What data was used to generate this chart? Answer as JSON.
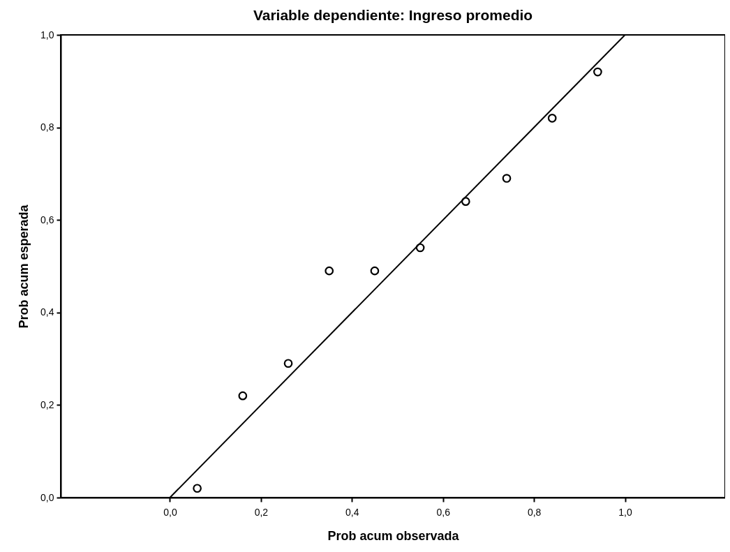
{
  "chart_data": {
    "type": "scatter",
    "title": "Variable dependiente: Ingreso promedio",
    "xlabel": "Prob acum observada",
    "ylabel": "Prob acum esperada",
    "xlim": [
      -0.24,
      1.22
    ],
    "ylim": [
      0,
      1
    ],
    "xticks": [
      {
        "value": 0,
        "label": "0,0"
      },
      {
        "value": 0.2,
        "label": "0,2"
      },
      {
        "value": 0.4,
        "label": "0,4"
      },
      {
        "value": 0.6,
        "label": "0,6"
      },
      {
        "value": 0.8,
        "label": "0,8"
      },
      {
        "value": 1,
        "label": "1,0"
      }
    ],
    "yticks": [
      {
        "value": 0,
        "label": "0,0"
      },
      {
        "value": 0.2,
        "label": "0,2"
      },
      {
        "value": 0.4,
        "label": "0,4"
      },
      {
        "value": 0.6,
        "label": "0,6"
      },
      {
        "value": 0.8,
        "label": "0,8"
      },
      {
        "value": 1,
        "label": "1,0"
      }
    ],
    "grid": false,
    "series": [
      {
        "type": "line",
        "color": "#000000",
        "line_style": "solid",
        "x": [
          0,
          1
        ],
        "values": [
          0,
          1
        ]
      },
      {
        "type": "scatter",
        "marker": "circle",
        "color": "#000000",
        "x": [
          0.06,
          0.16,
          0.26,
          0.35,
          0.45,
          0.55,
          0.65,
          0.74,
          0.84,
          0.94
        ],
        "values": [
          0.02,
          0.22,
          0.29,
          0.49,
          0.49,
          0.54,
          0.64,
          0.69,
          0.82,
          0.92
        ]
      }
    ]
  }
}
